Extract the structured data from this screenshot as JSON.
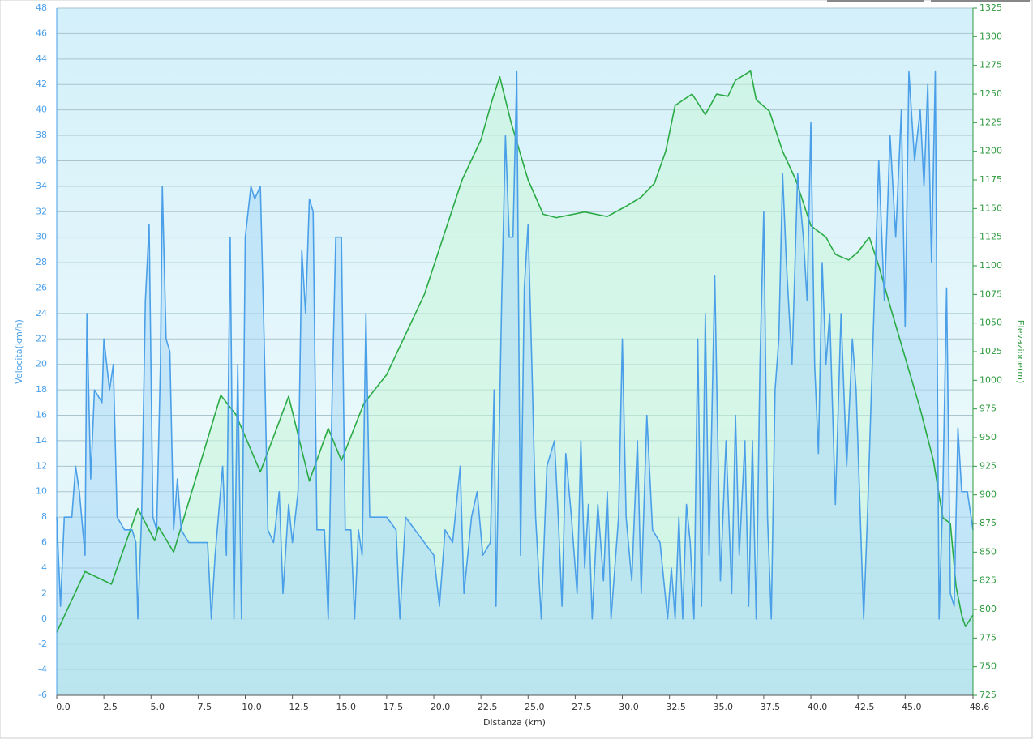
{
  "chart_data": {
    "type": "line",
    "xlabel": "Distanza  (km)",
    "ylabel": "Velocità(km/h)",
    "y2label": "Elevazione(m)",
    "xlim": [
      0,
      48.6
    ],
    "xticks": [
      {
        "value": 0,
        "label": "0.0"
      },
      2.5,
      {
        "value": 5,
        "label": "5.0"
      },
      7.5,
      {
        "value": 10,
        "label": "10.0"
      },
      12.5,
      {
        "value": 15,
        "label": "15.0"
      },
      17.5,
      {
        "value": 20,
        "label": "20.0"
      },
      22.5,
      {
        "value": 25,
        "label": "25.0"
      },
      27.5,
      {
        "value": 30,
        "label": "30.0"
      },
      32.5,
      {
        "value": 35,
        "label": "35.0"
      },
      37.5,
      {
        "value": 40,
        "label": "40.0"
      },
      42.5,
      {
        "value": 45,
        "label": "45.0"
      },
      48.6
    ],
    "ylim": [
      -6,
      48
    ],
    "yticks": [
      -6,
      -4,
      -2,
      0,
      2,
      4,
      6,
      8,
      10,
      12,
      14,
      16,
      18,
      20,
      22,
      24,
      26,
      28,
      30,
      32,
      34,
      36,
      38,
      40,
      42,
      44,
      46,
      48
    ],
    "y2lim": [
      725,
      1325
    ],
    "y2ticks": [
      725,
      750,
      775,
      800,
      825,
      850,
      875,
      900,
      925,
      950,
      975,
      1000,
      1025,
      1050,
      1075,
      1100,
      1125,
      1150,
      1175,
      1200,
      1225,
      1250,
      1275,
      1300,
      1325
    ],
    "grid": true,
    "series": [
      {
        "axis": "y2",
        "color": "#2aaa45",
        "fill": "#c8f5d8",
        "x": [
          0,
          1.5,
          2.9,
          4.3,
          5.2,
          5.4,
          6.2,
          8.7,
          9.5,
          10.8,
          12.3,
          13.4,
          14.4,
          15.1,
          16.3,
          17.5,
          18.5,
          19.5,
          20.5,
          21.5,
          22.5,
          23.1,
          23.5,
          24.1,
          25.0,
          25.8,
          26.5,
          28.0,
          29.2,
          30.2,
          31.0,
          31.7,
          32.3,
          32.8,
          33.7,
          34.4,
          35.0,
          35.6,
          36.0,
          36.8,
          37.1,
          37.8,
          38.5,
          39.2,
          40.0,
          40.8,
          41.3,
          42.0,
          42.5,
          43.1,
          43.6,
          44.2,
          45.0,
          45.8,
          46.5,
          47.0,
          47.4,
          47.7,
          48.0,
          48.2,
          48.6
        ],
        "values": [
          780,
          833,
          822,
          888,
          860,
          872,
          850,
          987,
          970,
          920,
          986,
          912,
          958,
          930,
          980,
          1005,
          1040,
          1075,
          1125,
          1175,
          1210,
          1245,
          1265,
          1225,
          1175,
          1145,
          1142,
          1147,
          1143,
          1152,
          1160,
          1172,
          1200,
          1240,
          1250,
          1232,
          1250,
          1248,
          1262,
          1270,
          1245,
          1235,
          1200,
          1175,
          1135,
          1125,
          1110,
          1105,
          1112,
          1125,
          1100,
          1065,
          1020,
          975,
          930,
          880,
          875,
          820,
          795,
          785,
          795
        ]
      },
      {
        "axis": "y",
        "color": "#4a9fe8",
        "fill": "#a9d8f5",
        "x": [
          0.0,
          0.2,
          0.4,
          0.8,
          1.0,
          1.2,
          1.5,
          1.6,
          1.8,
          2.0,
          2.4,
          2.5,
          2.8,
          3.0,
          3.2,
          3.6,
          4.0,
          4.2,
          4.3,
          4.5,
          4.7,
          4.9,
          5.1,
          5.3,
          5.5,
          5.6,
          5.8,
          6.0,
          6.2,
          6.4,
          6.6,
          7.0,
          7.5,
          8.0,
          8.2,
          8.4,
          8.8,
          9.0,
          9.2,
          9.4,
          9.6,
          9.8,
          10.0,
          10.3,
          10.5,
          10.8,
          11.0,
          11.2,
          11.5,
          11.8,
          12.0,
          12.3,
          12.5,
          12.8,
          13.0,
          13.2,
          13.4,
          13.6,
          13.8,
          14.2,
          14.4,
          14.6,
          14.8,
          15.1,
          15.3,
          15.6,
          15.8,
          16.0,
          16.2,
          16.4,
          16.6,
          17.0,
          17.5,
          18.0,
          18.2,
          18.5,
          19.0,
          19.5,
          20.0,
          20.3,
          20.6,
          21.0,
          21.4,
          21.6,
          22.0,
          22.3,
          22.6,
          23.0,
          23.2,
          23.3,
          23.6,
          23.8,
          24.0,
          24.2,
          24.4,
          24.6,
          24.8,
          25.0,
          25.2,
          25.4,
          25.7,
          26.0,
          26.4,
          26.6,
          26.8,
          27.0,
          27.3,
          27.6,
          27.8,
          28.0,
          28.2,
          28.4,
          28.7,
          29.0,
          29.2,
          29.4,
          29.8,
          30.0,
          30.2,
          30.5,
          30.8,
          31.0,
          31.3,
          31.6,
          32.0,
          32.4,
          32.6,
          32.8,
          33.0,
          33.2,
          33.4,
          33.6,
          33.8,
          34.0,
          34.2,
          34.4,
          34.6,
          34.9,
          35.2,
          35.5,
          35.8,
          36.0,
          36.2,
          36.5,
          36.7,
          36.9,
          37.1,
          37.3,
          37.5,
          37.7,
          37.9,
          38.1,
          38.3,
          38.5,
          38.7,
          39.0,
          39.3,
          39.6,
          39.8,
          40.0,
          40.2,
          40.4,
          40.6,
          40.8,
          41.0,
          41.3,
          41.6,
          41.9,
          42.2,
          42.4,
          42.6,
          42.8,
          43.0,
          43.3,
          43.6,
          43.9,
          44.2,
          44.5,
          44.8,
          45.0,
          45.2,
          45.5,
          45.8,
          46.0,
          46.2,
          46.4,
          46.6,
          46.8,
          47.0,
          47.2,
          47.4,
          47.6,
          47.8,
          48.0,
          48.3,
          48.6
        ],
        "values": [
          8,
          1,
          8,
          8,
          12,
          10,
          5,
          24,
          11,
          18,
          17,
          22,
          18,
          20,
          8,
          7,
          7,
          6,
          0,
          8,
          25,
          31,
          8,
          7,
          20,
          34,
          22,
          21,
          7,
          11,
          7,
          6,
          6,
          6,
          0,
          5,
          12,
          5,
          30,
          0,
          20,
          0,
          30,
          34,
          33,
          34,
          22,
          7,
          6,
          10,
          2,
          9,
          6,
          10,
          29,
          24,
          33,
          32,
          7,
          7,
          0,
          17,
          30,
          30,
          7,
          7,
          0,
          7,
          5,
          24,
          8,
          8,
          8,
          7,
          0,
          8,
          7,
          6,
          5,
          1,
          7,
          6,
          12,
          2,
          8,
          10,
          5,
          6,
          18,
          1,
          25,
          38,
          30,
          30,
          43,
          5,
          26,
          31,
          20,
          8,
          0,
          12,
          14,
          8,
          1,
          13,
          8,
          2,
          14,
          4,
          9,
          0,
          9,
          3,
          10,
          0,
          8,
          22,
          8,
          3,
          14,
          2,
          16,
          7,
          6,
          0,
          4,
          0,
          8,
          0,
          9,
          6,
          0,
          22,
          1,
          24,
          5,
          27,
          3,
          14,
          2,
          16,
          5,
          14,
          1,
          14,
          0,
          20,
          32,
          8,
          0,
          18,
          22,
          35,
          28,
          20,
          35,
          30,
          25,
          39,
          20,
          13,
          28,
          20,
          24,
          9,
          24,
          12,
          22,
          18,
          9,
          0,
          8,
          22,
          36,
          25,
          38,
          30,
          40,
          23,
          43,
          36,
          40,
          34,
          42,
          28,
          43,
          0,
          10,
          26,
          2,
          1,
          15,
          10,
          10,
          7
        ]
      }
    ]
  }
}
